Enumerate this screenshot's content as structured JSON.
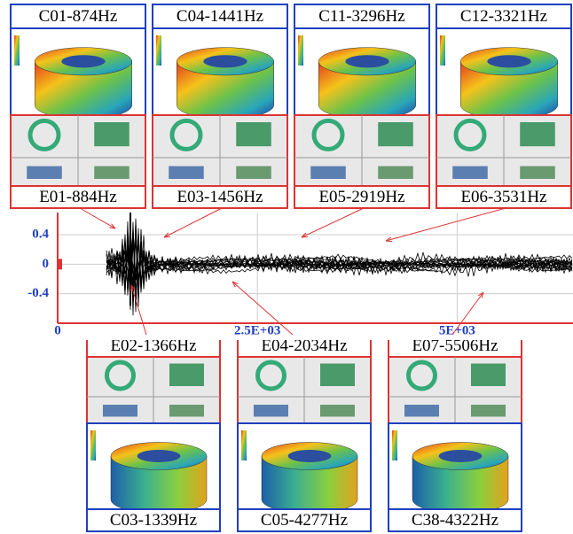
{
  "top_panels": [
    {
      "mode": "C01-874Hz",
      "experiment": "E01-884Hz"
    },
    {
      "mode": "C04-1441Hz",
      "experiment": "E03-1456Hz"
    },
    {
      "mode": "C11-3296Hz",
      "experiment": "E05-2919Hz"
    },
    {
      "mode": "C12-3321Hz",
      "experiment": "E06-3531Hz"
    }
  ],
  "chart": {
    "xlim": [
      0,
      6450
    ],
    "ylim": [
      -0.8,
      0.7
    ],
    "xticks": [
      0,
      {
        "value": 2500,
        "label": "2.5E+03"
      },
      {
        "value": 5000,
        "label": "5E+03"
      }
    ],
    "yticks": [
      0.4,
      0,
      -0.4
    ]
  },
  "bottom_panels": [
    {
      "experiment": "E02-1366Hz",
      "mode": "C03-1339Hz"
    },
    {
      "experiment": "E04-2034Hz",
      "mode": "C05-4277Hz"
    },
    {
      "experiment": "E07-5506Hz",
      "mode": "C38-4322Hz"
    }
  ]
}
